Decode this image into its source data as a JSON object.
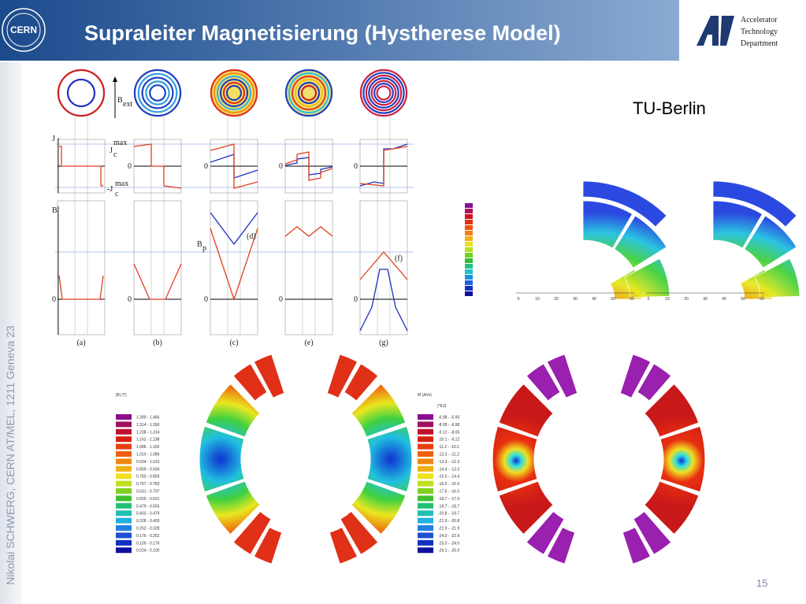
{
  "header": {
    "title": "Supraleiter Magnetisierung (Hystherese Model)",
    "logo_left": "CERN",
    "logo_right": [
      "Accelerator",
      "Technology",
      "Department"
    ]
  },
  "sidebar": "Nikolai SCHWERG, CERN AT/MEL, 1211 Geneva 23",
  "caption": "TU-Berlin",
  "page_number": "15",
  "hysteresis_figure": {
    "labels": {
      "j_axis": "J",
      "b_axis": "B",
      "b_ext": "B",
      "b_ext_sub": "ext",
      "jc": "J",
      "jc_sub": "c",
      "jc_sup": "max",
      "neg_jc": "-J",
      "bp": "B",
      "bp_sub": "p",
      "d": "(d)",
      "f": "(f)",
      "zero": "0"
    },
    "panels": [
      "(a)",
      "(b)",
      "(c)",
      "(e)",
      "(g)"
    ]
  },
  "coil_plots": {
    "ticks": [
      "0",
      "10",
      "20",
      "30",
      "40",
      "50",
      "60"
    ]
  },
  "legend_b": {
    "title": "|B| (T)",
    "rows": [
      "1.390 - 1.466",
      "1.314 - 1.390",
      "1.238 - 1.314",
      "1.162 - 1.238",
      "1.086 - 1.162",
      "1.010 - 1.086",
      "0.934 - 1.010",
      "0.859 - 0.934",
      "0.783 - 0.859",
      "0.707 - 0.783",
      "0.631 - 0.707",
      "0.555 - 0.631",
      "0.479 - 0.555",
      "0.403 - 0.479",
      "0.328 - 0.403",
      "0.252 - 0.328",
      "0.176 - 0.252",
      "0.100 - 0.176",
      "0.024 - 0.100"
    ]
  },
  "legend_m": {
    "title": "M (A/m)",
    "unit": "(*E3)",
    "rows": [
      "-6.98 - -5.95",
      "-8.05 - -6.98",
      "-9.12 - -8.05",
      "-10.1 - -9.12",
      "-11.2 - -10.1",
      "-12.3 - -11.2",
      "-13.3 - -12.3",
      "-14.4 - -13.3",
      "-15.5 - -14.4",
      "-16.5 - -15.5",
      "-17.6 - -16.5",
      "-18.7 - -17.6",
      "-19.7 - -18.7",
      "-20.8 - -19.7",
      "-21.9 - -20.8",
      "-22.9 - -21.9",
      "-24.0 - -22.9",
      "-25.0 - -24.0",
      "-26.1 - -25.0"
    ]
  }
}
